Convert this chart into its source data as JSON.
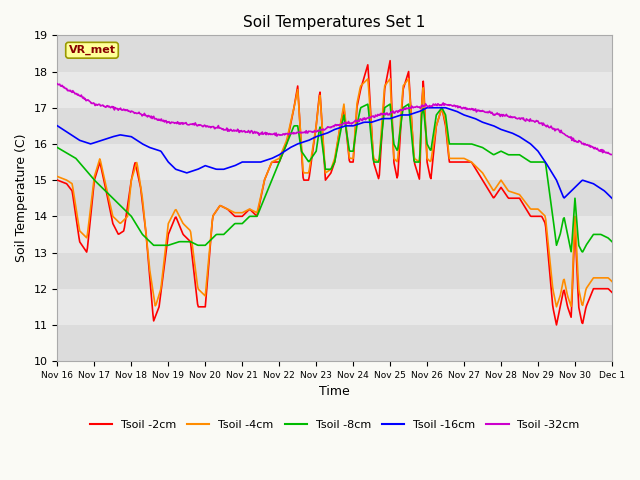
{
  "title": "Soil Temperatures Set 1",
  "xlabel": "Time",
  "ylabel": "Soil Temperature (C)",
  "ylim": [
    10.0,
    19.0
  ],
  "yticks": [
    10.0,
    11.0,
    12.0,
    13.0,
    14.0,
    15.0,
    16.0,
    17.0,
    18.0,
    19.0
  ],
  "fig_bg": "#F5F5F0",
  "plot_bg": "#E8E8E8",
  "band_color1": "#DCDCDC",
  "band_color2": "#F0F0F0",
  "line_colors": {
    "2cm": "#FF0000",
    "4cm": "#FF8C00",
    "8cm": "#00BB00",
    "16cm": "#0000FF",
    "32cm": "#CC00CC"
  },
  "legend_labels": [
    "Tsoil -2cm",
    "Tsoil -4cm",
    "Tsoil -8cm",
    "Tsoil -16cm",
    "Tsoil -32cm"
  ],
  "annotation_text": "VR_met",
  "annotation_color": "#880000",
  "annotation_bg": "#FFFF99",
  "annotation_edge": "#999900",
  "xtick_labels": [
    "Nov 16",
    "Nov 17",
    "Nov 18",
    "Nov 19",
    "Nov 20",
    "Nov 21",
    "Nov 22",
    "Nov 23",
    "Nov 24",
    "Nov 25",
    "Nov 26",
    "Nov 27",
    "Nov 28",
    "Nov 29",
    "Nov 30",
    "Dec 1"
  ],
  "num_points": 721,
  "days": 15
}
